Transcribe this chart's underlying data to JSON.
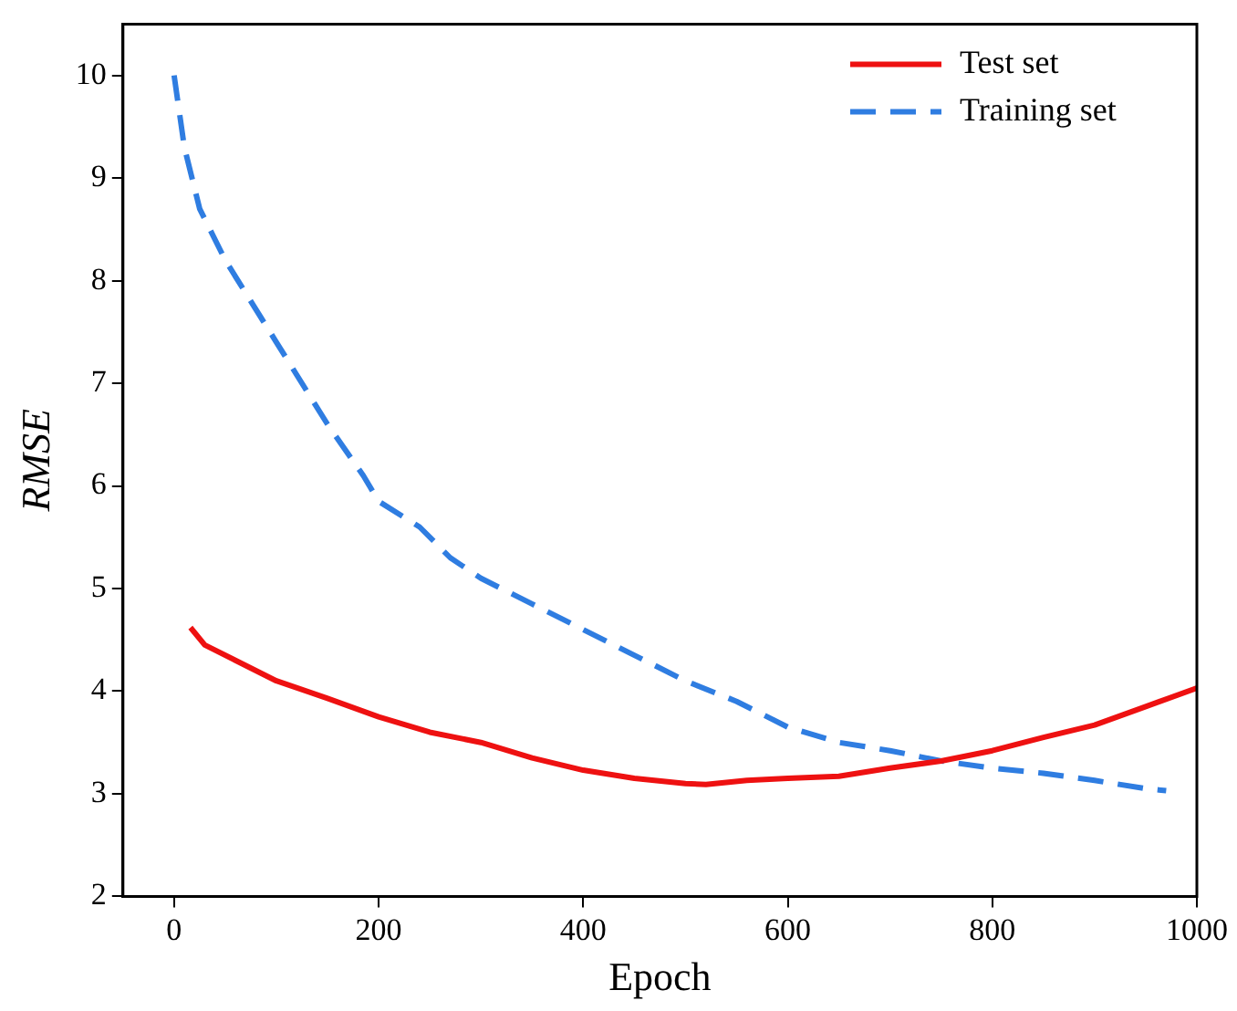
{
  "chart_data": {
    "type": "line",
    "xlabel": "Epoch",
    "ylabel": "RMSE",
    "xlim": [
      -50,
      1000
    ],
    "xticks": [
      0,
      200,
      400,
      600,
      800,
      1000
    ],
    "ylim": [
      2,
      10.5
    ],
    "yticks": [
      2,
      3,
      4,
      5,
      6,
      7,
      8,
      9,
      10
    ],
    "grid": false,
    "legend": "top right",
    "marker": "none",
    "series": [
      {
        "name": "Test set",
        "color": "#ee1111",
        "line_style": "solid",
        "x": [
          16,
          30,
          60,
          100,
          150,
          200,
          250,
          300,
          350,
          400,
          450,
          500,
          520,
          560,
          600,
          650,
          700,
          750,
          800,
          850,
          900,
          950,
          1000
        ],
        "values": [
          4.62,
          4.45,
          4.3,
          4.1,
          3.93,
          3.75,
          3.6,
          3.5,
          3.35,
          3.23,
          3.15,
          3.1,
          3.09,
          3.13,
          3.15,
          3.17,
          3.25,
          3.32,
          3.42,
          3.55,
          3.67,
          3.85,
          4.03
        ]
      },
      {
        "name": "Training set",
        "color": "#2f7de1",
        "line_style": "dashed",
        "x": [
          0,
          10,
          25,
          50,
          100,
          150,
          185,
          200,
          240,
          270,
          300,
          350,
          400,
          450,
          500,
          550,
          600,
          650,
          700,
          750,
          800,
          850,
          900,
          950,
          970
        ],
        "values": [
          10.0,
          9.3,
          8.7,
          8.2,
          7.4,
          6.6,
          6.1,
          5.85,
          5.6,
          5.3,
          5.1,
          4.85,
          4.6,
          4.35,
          4.1,
          3.9,
          3.65,
          3.5,
          3.42,
          3.32,
          3.25,
          3.2,
          3.13,
          3.05,
          3.03
        ]
      }
    ]
  }
}
